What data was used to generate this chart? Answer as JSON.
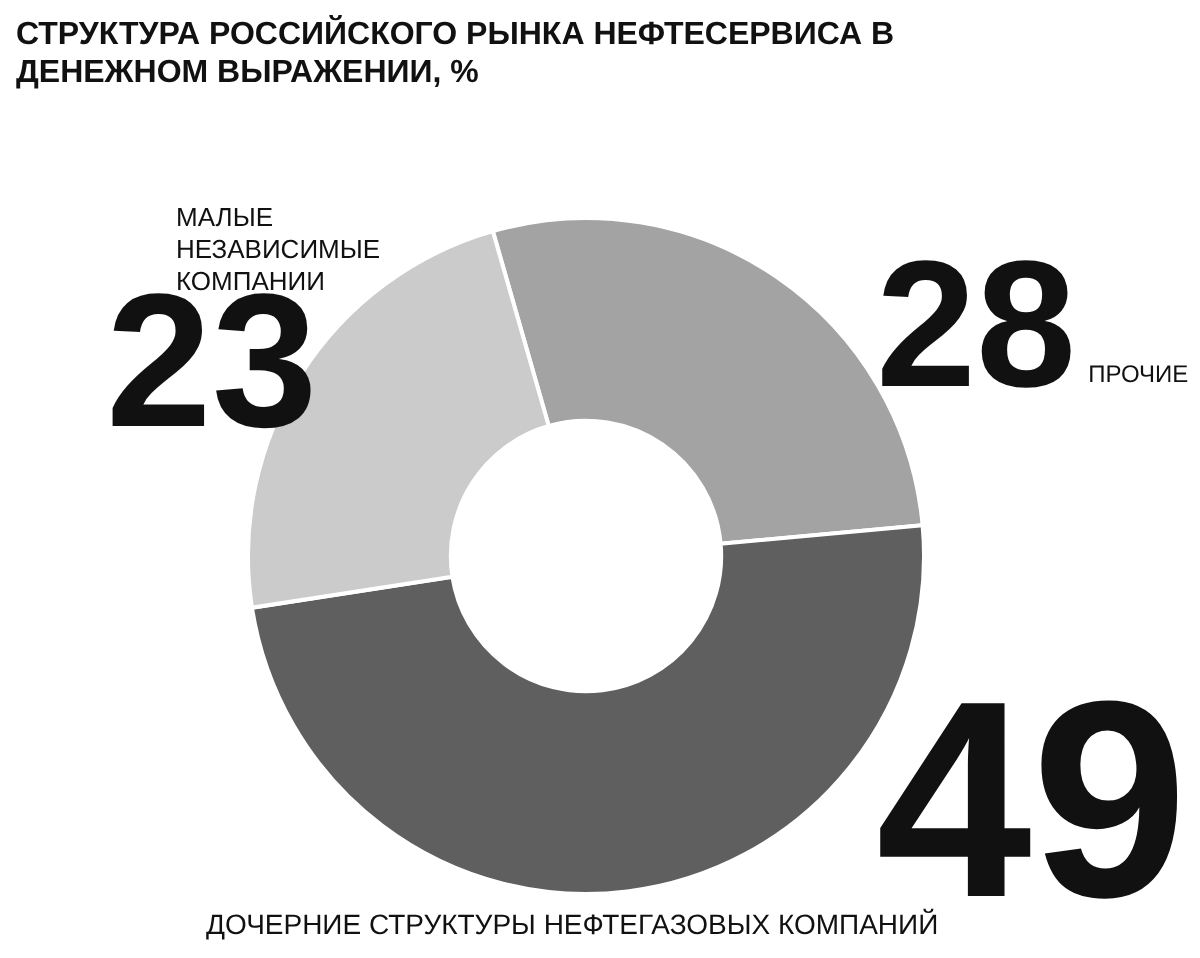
{
  "chart_data": {
    "type": "donut",
    "title": "СТРУКТУРА РОССИЙСКОГО РЫНКА НЕФТЕСЕРВИСА В ДЕНЕЖНОМ ВЫРАЖЕНИИ, %",
    "categories": [
      "ПРОЧИЕ",
      "ДОЧЕРНИЕ СТРУКТУРЫ НЕФТЕГАЗОВЫХ КОМПАНИЙ",
      "МАЛЫЕ НЕЗАВИСИМЫЕ КОМПАНИИ"
    ],
    "values": [
      28,
      49,
      23
    ],
    "colors": [
      "#a3a3a3",
      "#5f5f5f",
      "#cbcbcb"
    ],
    "data_labels": true,
    "legend": false
  }
}
